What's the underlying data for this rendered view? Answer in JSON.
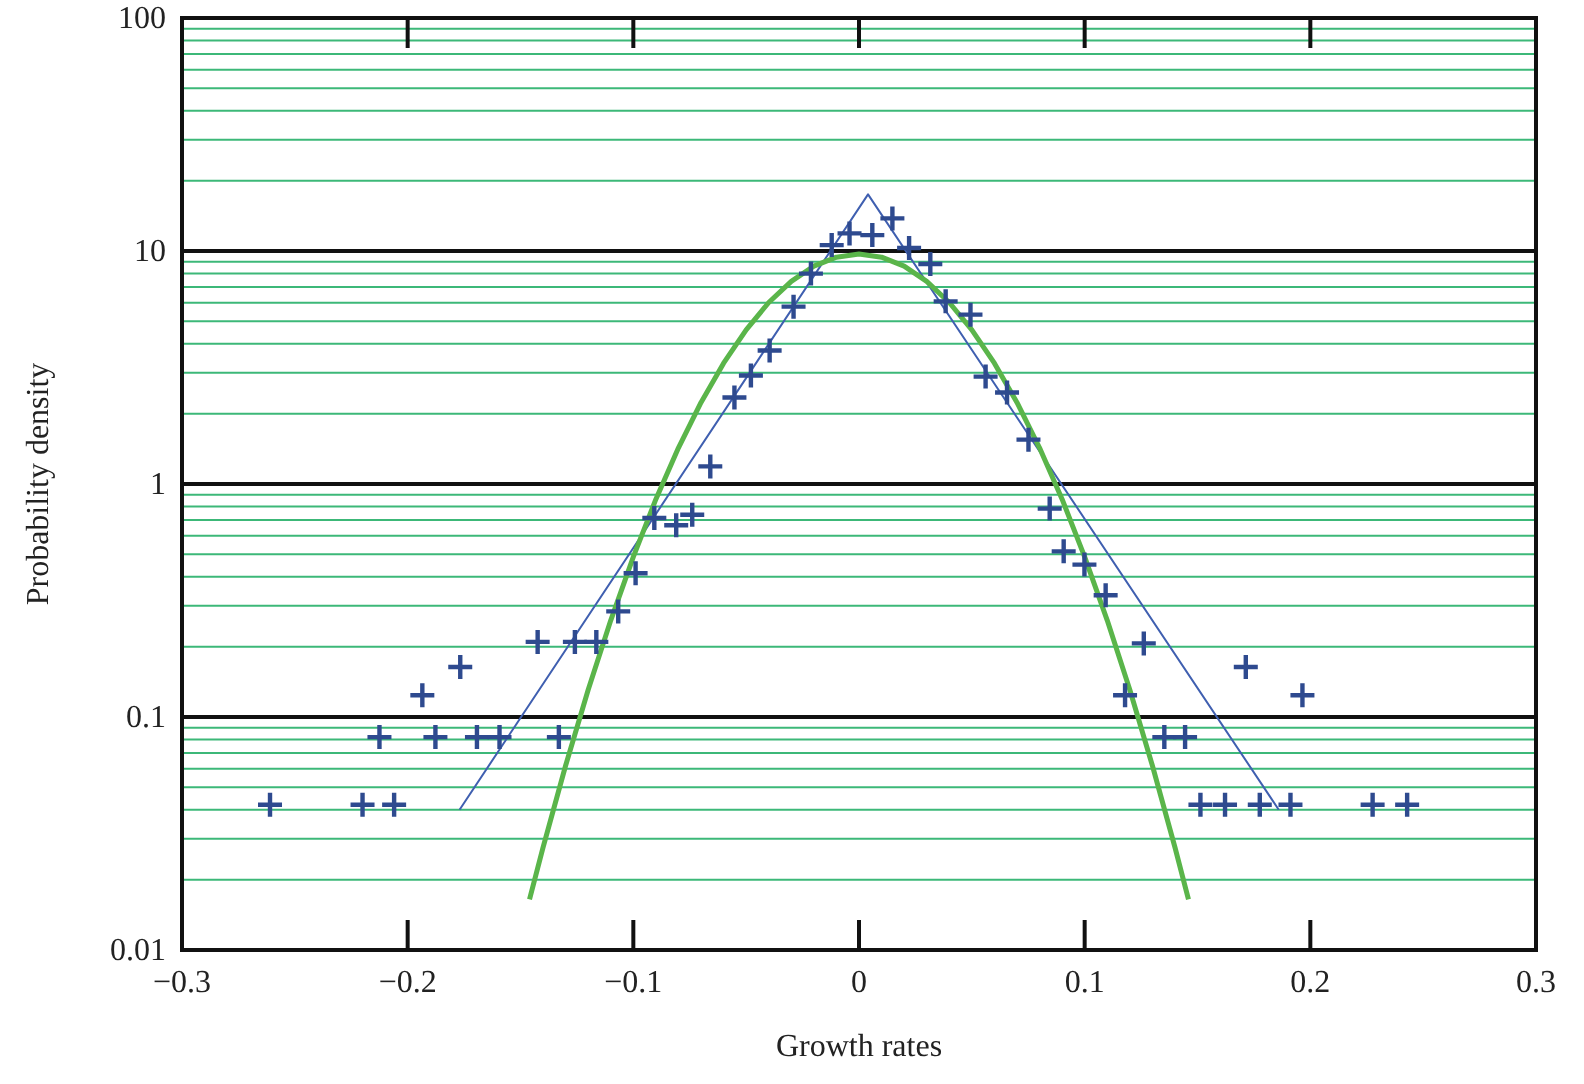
{
  "chart_data": {
    "type": "scatter",
    "xlabel": "Growth rates",
    "ylabel": "Probability density",
    "log": "y",
    "grid": "y",
    "legend": false,
    "xlim": [
      -0.3,
      0.3
    ],
    "xticks": [
      {
        "value": -0.3,
        "label": "−0.3"
      },
      {
        "value": -0.2,
        "label": "−0.2"
      },
      {
        "value": -0.1,
        "label": "−0.1"
      },
      0,
      0.1,
      0.2,
      0.3
    ],
    "ylim": [
      0.01,
      100
    ],
    "yticks": [
      0.01,
      {
        "value": 0.02,
        "label": null
      },
      {
        "value": 0.03,
        "label": null
      },
      {
        "value": 0.04,
        "label": null
      },
      {
        "value": 0.05,
        "label": null
      },
      {
        "value": 0.06,
        "label": null
      },
      {
        "value": 0.07,
        "label": null
      },
      {
        "value": 0.08,
        "label": null
      },
      {
        "value": 0.09,
        "label": null
      },
      0.1,
      {
        "value": 0.2,
        "label": null
      },
      {
        "value": 0.3,
        "label": null
      },
      {
        "value": 0.4,
        "label": null
      },
      {
        "value": 0.5,
        "label": null
      },
      {
        "value": 0.6,
        "label": null
      },
      {
        "value": 0.7,
        "label": null
      },
      {
        "value": 0.8,
        "label": null
      },
      {
        "value": 0.9,
        "label": null
      },
      1,
      {
        "value": 2,
        "label": null
      },
      {
        "value": 3,
        "label": null
      },
      {
        "value": 4,
        "label": null
      },
      {
        "value": 5,
        "label": null
      },
      {
        "value": 6,
        "label": null
      },
      {
        "value": 7,
        "label": null
      },
      {
        "value": 8,
        "label": null
      },
      {
        "value": 9,
        "label": null
      },
      10,
      {
        "value": 20,
        "label": null
      },
      {
        "value": 30,
        "label": null
      },
      {
        "value": 40,
        "label": null
      },
      {
        "value": 50,
        "label": null
      },
      {
        "value": 60,
        "label": null
      },
      {
        "value": 70,
        "label": null
      },
      {
        "value": 80,
        "label": null
      },
      {
        "value": 90,
        "label": null
      },
      100
    ],
    "series": [
      {
        "type": "scatter",
        "marker": "cross",
        "color": "#2e4a8f",
        "x": [
          -0.261,
          -0.22,
          -0.206,
          -0.2125,
          -0.1935,
          -0.1877,
          -0.1767,
          -0.1693,
          -0.1593,
          -0.1424,
          -0.133,
          -0.1259,
          -0.1164,
          -0.1067,
          -0.099,
          -0.0907,
          -0.081,
          -0.0739,
          -0.0659,
          -0.0552,
          -0.0479,
          -0.0396,
          -0.029,
          -0.0213,
          -0.0121,
          -0.0042,
          0.0059,
          0.0148,
          0.0222,
          0.0316,
          0.0384,
          0.0494,
          0.0561,
          0.0656,
          0.0751,
          0.0845,
          0.0907,
          0.0999,
          0.1093,
          0.1179,
          0.1262,
          0.1353,
          0.1445,
          0.1513,
          0.1622,
          0.1714,
          0.1776,
          0.1912,
          0.1965,
          0.2276,
          0.2429
        ],
        "values": [
          0.042,
          0.042,
          0.042,
          0.082,
          0.124,
          0.082,
          0.164,
          0.082,
          0.082,
          0.21,
          0.082,
          0.21,
          0.21,
          0.284,
          0.414,
          0.715,
          0.665,
          0.738,
          1.19,
          2.35,
          2.92,
          3.74,
          5.77,
          8.0,
          10.6,
          11.9,
          11.7,
          13.8,
          10.3,
          8.8,
          6.08,
          5.33,
          2.89,
          2.47,
          1.55,
          0.784,
          0.514,
          0.451,
          0.333,
          0.124,
          0.207,
          0.082,
          0.082,
          0.042,
          0.042,
          0.164,
          0.042,
          0.042,
          0.124,
          0.042,
          0.042
        ]
      },
      {
        "type": "line",
        "marker": "none",
        "line_style": "solid",
        "color": "#3f5fb0",
        "x": [
          -0.177,
          0.004,
          0.186
        ],
        "values": [
          0.04,
          17.5,
          0.04
        ]
      },
      {
        "type": "line",
        "marker": "none",
        "line_style": "solid",
        "color": "#5ab54a",
        "x": [
          -0.146,
          -0.14,
          -0.13,
          -0.12,
          -0.11,
          -0.1,
          -0.09,
          -0.08,
          -0.07,
          -0.06,
          -0.05,
          -0.04,
          -0.03,
          -0.02,
          -0.01,
          0,
          0.01,
          0.02,
          0.03,
          0.04,
          0.05,
          0.06,
          0.07,
          0.08,
          0.09,
          0.1,
          0.11,
          0.12,
          0.13,
          0.14,
          0.146
        ],
        "values": [
          0.0165,
          0.0276,
          0.0619,
          0.131,
          0.26,
          0.487,
          0.861,
          1.43,
          2.24,
          3.3,
          4.59,
          6.01,
          7.41,
          8.61,
          9.41,
          9.7,
          9.41,
          8.61,
          7.41,
          6.01,
          4.59,
          3.3,
          2.24,
          1.43,
          0.861,
          0.487,
          0.26,
          0.131,
          0.0619,
          0.0276,
          0.0165
        ]
      }
    ]
  }
}
